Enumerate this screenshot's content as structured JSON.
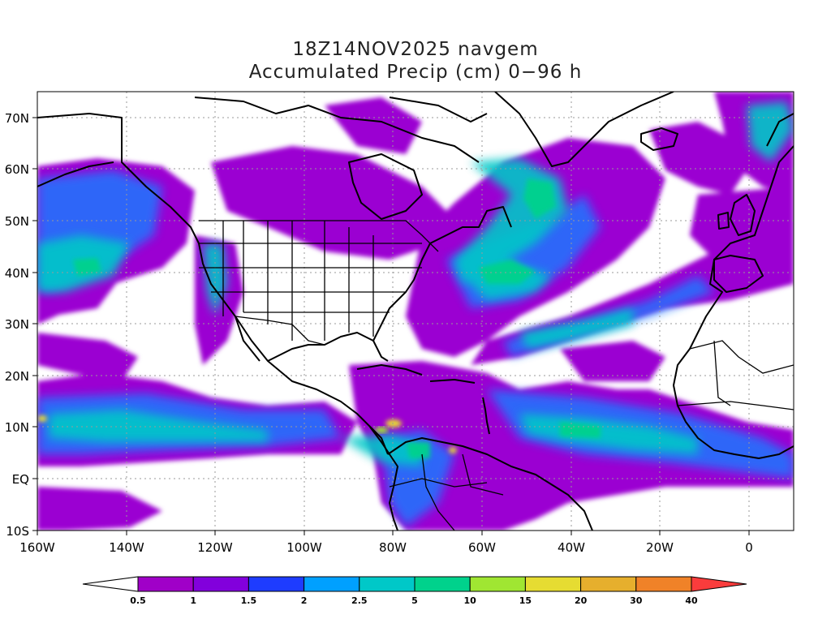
{
  "title": {
    "line1": "18Z14NOV2025 navgem",
    "line2": "Accumulated Precip (cm) 0−96 h"
  },
  "map": {
    "lon_range": [
      -160,
      10
    ],
    "lat_range": [
      -10,
      75
    ],
    "lon_labels": [
      "160W",
      "140W",
      "120W",
      "100W",
      "80W",
      "60W",
      "40W",
      "20W",
      "0"
    ],
    "lat_labels": [
      "10S",
      "EQ",
      "10N",
      "20N",
      "30N",
      "40N",
      "50N",
      "60N",
      "70N"
    ],
    "grid": "dotted"
  },
  "colorbar": {
    "labels": [
      "0.5",
      "1",
      "1.5",
      "2",
      "2.5",
      "5",
      "10",
      "15",
      "20",
      "30",
      "40"
    ],
    "colors": [
      "#a000c8",
      "#8200dc",
      "#1e3cff",
      "#00a0ff",
      "#00c8c8",
      "#00d28c",
      "#a0e632",
      "#e6dc32",
      "#e6af2d",
      "#f08228",
      "#fa3c3c"
    ],
    "under_color": "#ffffff"
  }
}
